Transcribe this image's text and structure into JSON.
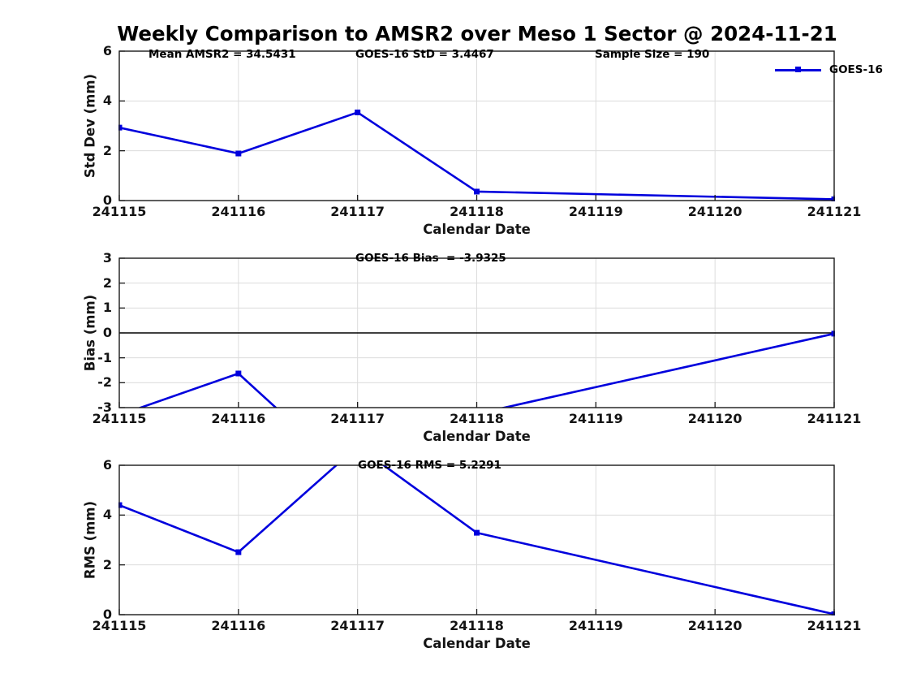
{
  "title": "Weekly Comparison to AMSR2 over Meso 1 Sector @ 2024-11-21",
  "legend": {
    "label": "GOES-16",
    "marker": "square"
  },
  "colors": {
    "line": "#0000dd",
    "grid": "#dcdcdc",
    "axis": "#1a1a1a",
    "zero_line": "#000000",
    "text": "#141414"
  },
  "chart_data": [
    {
      "type": "line",
      "name": "std-dev-panel",
      "title": "",
      "xlabel": "Calendar Date",
      "ylabel": "Std Dev (mm)",
      "x": [
        241115,
        241116,
        241117,
        241118,
        241121
      ],
      "series": [
        {
          "name": "GOES-16",
          "values": [
            2.93,
            1.89,
            3.54,
            0.36,
            0.05
          ]
        }
      ],
      "ylim": [
        0,
        6
      ],
      "yticks": [
        0,
        2,
        4,
        6
      ],
      "xticks": [
        241115,
        241116,
        241117,
        241118,
        241119,
        241120,
        241121
      ],
      "grid": true,
      "zero_line": false,
      "legend_position": "northeast",
      "annotations": [
        "Mean AMSR2 = 34.5431",
        "GOES-16 StD = 3.4467",
        "Sample Size = 190"
      ]
    },
    {
      "type": "line",
      "name": "bias-panel",
      "title": "",
      "xlabel": "Calendar Date",
      "ylabel": "Bias (mm)",
      "x": [
        241115,
        241116,
        241117,
        241118,
        241121
      ],
      "series": [
        {
          "name": "GOES-16",
          "values": [
            -3.3,
            -1.63,
            -6.0,
            -3.25,
            -0.03
          ]
        }
      ],
      "ylim": [
        -3,
        3
      ],
      "yticks": [
        -3,
        -2,
        -1,
        0,
        1,
        2,
        3
      ],
      "xticks": [
        241115,
        241116,
        241117,
        241118,
        241119,
        241120,
        241121
      ],
      "grid": true,
      "zero_line": true,
      "annotations": [
        "GOES-16 Bias  = -3.9325"
      ]
    },
    {
      "type": "line",
      "name": "rms-panel",
      "title": "",
      "xlabel": "Calendar Date",
      "ylabel": "RMS (mm)",
      "x": [
        241115,
        241116,
        241117,
        241118,
        241121
      ],
      "series": [
        {
          "name": "GOES-16",
          "values": [
            4.4,
            2.51,
            6.76,
            3.29,
            0.02
          ]
        }
      ],
      "ylim": [
        0,
        6
      ],
      "yticks": [
        0,
        2,
        4,
        6
      ],
      "xticks": [
        241115,
        241116,
        241117,
        241118,
        241119,
        241120,
        241121
      ],
      "grid": true,
      "zero_line": false,
      "annotations": [
        "GOES-16 RMS = 5.2291"
      ]
    }
  ]
}
